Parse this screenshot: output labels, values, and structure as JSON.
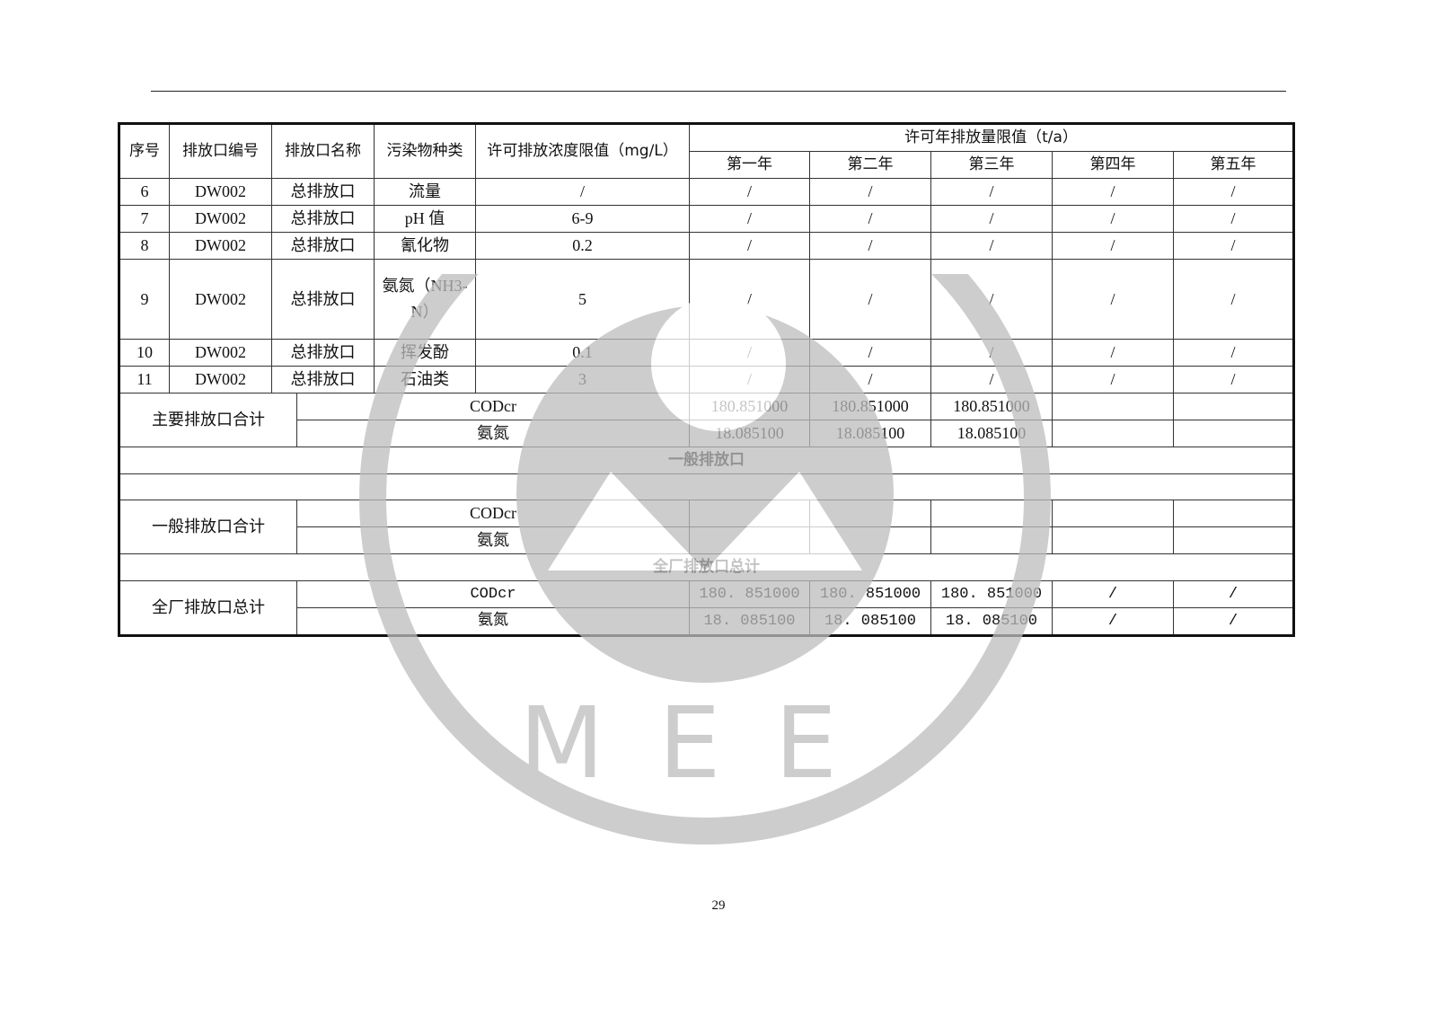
{
  "header": {
    "columns": [
      "序号",
      "排放口编号",
      "排放口名称",
      "污染物种类",
      "许可排放浓度限值（mg/L）"
    ],
    "annual_group": "许可年排放量限值（t/a）",
    "years": [
      "第一年",
      "第二年",
      "第三年",
      "第四年",
      "第五年"
    ]
  },
  "rows": [
    {
      "no": "6",
      "code": "DW002",
      "name": "总排放口",
      "pollutant": "流量",
      "limit": "/",
      "years": [
        "/",
        "/",
        "/",
        "/",
        "/"
      ]
    },
    {
      "no": "7",
      "code": "DW002",
      "name": "总排放口",
      "pollutant": "pH 值",
      "limit": "6-9",
      "years": [
        "/",
        "/",
        "/",
        "/",
        "/"
      ]
    },
    {
      "no": "8",
      "code": "DW002",
      "name": "总排放口",
      "pollutant": "氰化物",
      "limit": "0.2",
      "years": [
        "/",
        "/",
        "/",
        "/",
        "/"
      ]
    },
    {
      "no": "9",
      "code": "DW002",
      "name": "总排放口",
      "pollutant": "氨氮（NH3-N）",
      "limit": "5",
      "years": [
        "/",
        "/",
        "/",
        "/",
        "/"
      ]
    },
    {
      "no": "10",
      "code": "DW002",
      "name": "总排放口",
      "pollutant": "挥发酚",
      "limit": "0.1",
      "years": [
        "/",
        "/",
        "/",
        "/",
        "/"
      ]
    },
    {
      "no": "11",
      "code": "DW002",
      "name": "总排放口",
      "pollutant": "石油类",
      "limit": "3",
      "years": [
        "/",
        "/",
        "/",
        "/",
        "/"
      ]
    }
  ],
  "main_total": {
    "label": "主要排放口合计",
    "items": [
      {
        "pollutant": "CODcr",
        "years": [
          "180.851000",
          "180.851000",
          "180.851000",
          "",
          ""
        ]
      },
      {
        "pollutant": "氨氮",
        "years": [
          "18.085100",
          "18.085100",
          "18.085100",
          "",
          ""
        ]
      }
    ]
  },
  "general_section": {
    "title": "一般排放口"
  },
  "general_total": {
    "label": "一般排放口合计",
    "items": [
      {
        "pollutant": "CODcr",
        "years": [
          "",
          "",
          "",
          "",
          ""
        ]
      },
      {
        "pollutant": "氨氮",
        "years": [
          "",
          "",
          "",
          "",
          ""
        ]
      }
    ]
  },
  "plant_section": {
    "title": "全厂排放口总计"
  },
  "plant_total": {
    "label": "全厂排放口总计",
    "items": [
      {
        "pollutant": "CODcr",
        "years": [
          "180. 851000",
          "180. 851000",
          "180. 851000",
          "/",
          "/"
        ]
      },
      {
        "pollutant": "氨氮",
        "years": [
          "18. 085100",
          "18. 085100",
          "18. 085100",
          "/",
          "/"
        ]
      }
    ]
  },
  "watermark": {
    "text": "MEE",
    "color": "#bdbdbd"
  },
  "page_number": "29"
}
